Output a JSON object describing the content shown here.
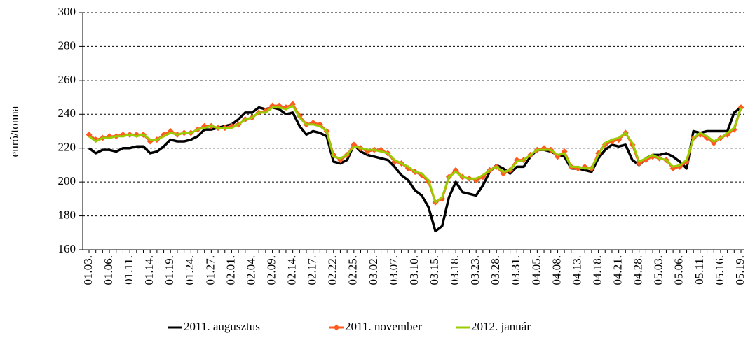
{
  "chart_data": {
    "type": "line",
    "y_label": "euró/tonna",
    "categories": [
      "01.03.",
      null,
      null,
      "01.06.",
      null,
      null,
      "01.11.",
      null,
      null,
      "01.14.",
      null,
      null,
      "01.19.",
      null,
      null,
      "01.24.",
      null,
      null,
      "01.27.",
      null,
      null,
      "02.01.",
      null,
      null,
      "02.04.",
      null,
      null,
      "02.09.",
      null,
      null,
      "02.14.",
      null,
      null,
      "02.17.",
      null,
      null,
      "02.22.",
      null,
      null,
      "02.25.",
      null,
      null,
      "03.02.",
      null,
      null,
      "03.07.",
      null,
      null,
      "03.10.",
      null,
      null,
      "03.15.",
      null,
      null,
      "03.18.",
      null,
      null,
      "03.23.",
      null,
      null,
      "03.28.",
      null,
      null,
      "03.31.",
      null,
      null,
      "04.05.",
      null,
      null,
      "04.08.",
      null,
      null,
      "04.13.",
      null,
      null,
      "04.18.",
      null,
      null,
      "04.21.",
      null,
      null,
      "04.28.",
      null,
      null,
      "05.03.",
      null,
      null,
      "05.06.",
      null,
      null,
      "05.11.",
      null,
      null,
      "05.16.",
      null,
      null,
      "05.19."
    ],
    "series": [
      {
        "name": "2011. augusztus",
        "color": "#000000",
        "marker": false,
        "values": [
          220,
          217,
          219,
          219,
          218,
          220,
          220,
          221,
          221,
          217,
          218,
          221,
          225,
          224,
          224,
          225,
          227,
          231,
          231,
          232,
          233,
          234,
          237,
          241,
          241,
          244,
          243,
          244,
          243,
          240,
          241,
          233,
          228,
          230,
          229,
          227,
          212,
          211,
          213,
          222,
          218,
          216,
          215,
          214,
          213,
          209,
          204,
          201,
          195,
          192,
          185,
          171,
          174,
          191,
          200,
          194,
          193,
          192,
          198,
          206,
          210,
          208,
          205,
          209,
          209,
          215,
          219,
          219,
          218,
          216,
          215,
          208,
          208,
          207,
          206,
          214,
          219,
          222,
          221,
          222,
          213,
          210,
          214,
          216,
          216,
          217,
          215,
          212,
          208,
          230,
          229,
          230,
          230,
          230,
          230,
          241,
          244
        ]
      },
      {
        "name": "2011. november",
        "color": "#ff5a1f",
        "marker": true,
        "values": [
          228,
          225,
          226,
          227,
          227,
          228,
          228,
          228,
          228,
          224,
          225,
          228,
          230,
          228,
          229,
          229,
          231,
          233,
          233,
          232,
          232,
          233,
          234,
          237,
          238,
          241,
          242,
          245,
          245,
          244,
          246,
          239,
          234,
          235,
          234,
          230,
          216,
          213,
          216,
          222,
          220,
          218,
          219,
          219,
          217,
          212,
          211,
          208,
          206,
          204,
          200,
          188,
          190,
          203,
          207,
          203,
          202,
          201,
          203,
          207,
          209,
          205,
          207,
          213,
          213,
          216,
          219,
          220,
          219,
          215,
          218,
          209,
          208,
          209,
          208,
          217,
          222,
          224,
          225,
          229,
          222,
          211,
          213,
          215,
          214,
          213,
          208,
          209,
          212,
          226,
          228,
          226,
          223,
          226,
          228,
          231,
          244
        ]
      },
      {
        "name": "2012. január",
        "color": "#99cc00",
        "marker": false,
        "values": [
          227,
          224,
          226,
          226,
          227,
          227,
          228,
          227,
          228,
          225,
          225,
          227,
          229,
          228,
          229,
          229,
          231,
          232,
          233,
          232,
          232,
          232,
          234,
          237,
          238,
          241,
          241,
          244,
          244,
          243,
          245,
          238,
          234,
          234,
          233,
          230,
          215,
          214,
          216,
          221,
          220,
          219,
          219,
          218,
          217,
          213,
          211,
          209,
          206,
          205,
          201,
          188,
          191,
          203,
          206,
          203,
          202,
          202,
          204,
          207,
          209,
          206,
          207,
          212,
          213,
          216,
          219,
          219,
          219,
          216,
          217,
          209,
          209,
          208,
          208,
          216,
          223,
          225,
          226,
          229,
          223,
          212,
          214,
          216,
          214,
          213,
          209,
          210,
          213,
          226,
          229,
          227,
          224,
          226,
          229,
          232,
          244
        ]
      }
    ],
    "ylim": [
      160,
      300
    ],
    "yticks": [
      160,
      180,
      200,
      220,
      240,
      260,
      280,
      300
    ],
    "grid": true,
    "legend": "bottom"
  }
}
